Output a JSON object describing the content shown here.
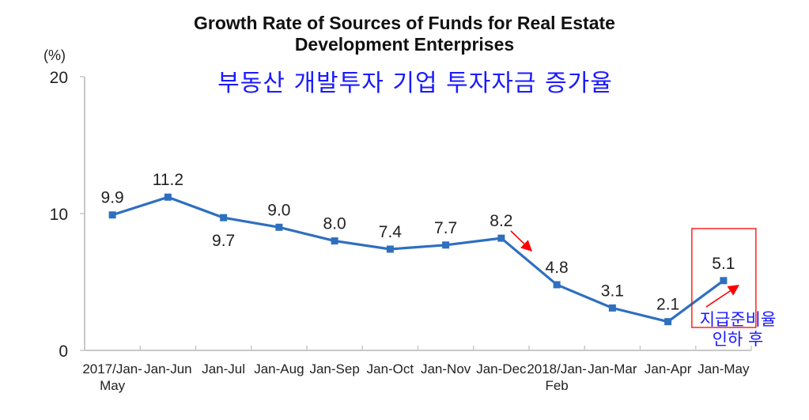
{
  "chart_data": {
    "type": "line",
    "title": "Growth Rate of Sources of Funds for Real Estate Development Enterprises",
    "title_lines": [
      "Growth Rate of Sources of Funds for Real Estate",
      "Development Enterprises"
    ],
    "subtitle_korean": "부동산 개발투자 기업 투자자금 증가율",
    "ylabel": "(%)",
    "xlabel": "",
    "ylim": [
      0,
      20
    ],
    "yticks": [
      "0",
      "10",
      "20"
    ],
    "grid": false,
    "categories": [
      [
        "2017/Jan-",
        "May"
      ],
      [
        "Jan-Jun"
      ],
      [
        "Jan-Jul"
      ],
      [
        "Jan-Aug"
      ],
      [
        "Jan-Sep"
      ],
      [
        "Jan-Oct"
      ],
      [
        "Jan-Nov"
      ],
      [
        "Jan-Dec"
      ],
      [
        "2018/Jan-",
        "Feb"
      ],
      [
        "Jan-Mar"
      ],
      [
        "Jan-Apr"
      ],
      [
        "Jan-May"
      ]
    ],
    "series": [
      {
        "name": "Growth rate",
        "color": "#2e6fc0",
        "values": [
          9.9,
          11.2,
          9.7,
          9.0,
          8.0,
          7.4,
          7.7,
          8.2,
          4.8,
          3.1,
          2.1,
          5.1
        ],
        "labels": [
          "9.9",
          "11.2",
          "9.7",
          "9.0",
          "8.0",
          "7.4",
          "7.7",
          "8.2",
          "4.8",
          "3.1",
          "2.1",
          "5.1"
        ],
        "label_position": [
          "above",
          "above",
          "below",
          "above",
          "above",
          "above",
          "above",
          "above",
          "above",
          "above",
          "above",
          "above"
        ]
      }
    ],
    "annotations": {
      "highlight_category": "Jan-May",
      "highlight_color": "#ff0000",
      "arrow_color": "#ff0000",
      "note_korean": [
        "지급준비율",
        "인하 후"
      ],
      "note_color": "#1a1aff"
    }
  }
}
